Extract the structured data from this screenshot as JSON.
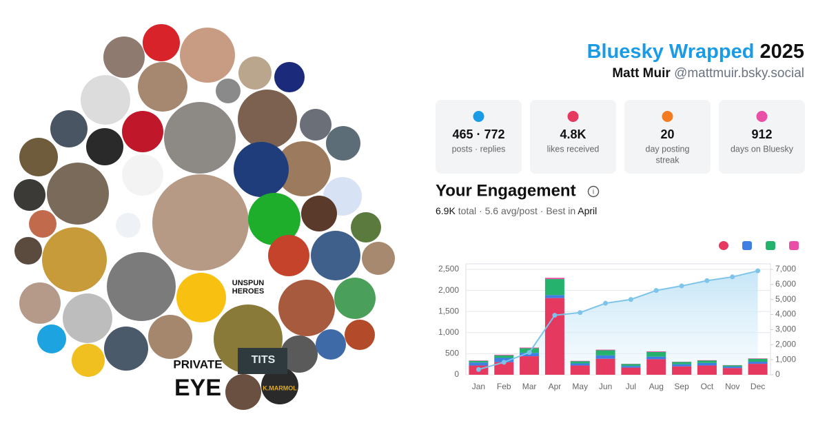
{
  "header": {
    "title": "Bluesky Wrapped",
    "year": "2025",
    "name": "Matt Muir",
    "handle": "@mattmuir.bsky.social"
  },
  "stats": [
    {
      "value": "465 · 772",
      "label": "posts · replies"
    },
    {
      "value": "4.8K",
      "label": "likes received"
    },
    {
      "value": "20",
      "label": "day posting",
      "label2": "streak"
    },
    {
      "value": "912",
      "label": "days on Bluesky"
    }
  ],
  "engagement": {
    "title": "Your Engagement",
    "total": "6.9K",
    "middle": "total · 5.6 avg/post · Best in",
    "best": "April"
  },
  "avatar_labels": [
    "UNSPUN",
    "HEROES",
    "PRIVATE",
    "EYE",
    "K.MARMOL",
    "TITS"
  ],
  "chart_data": {
    "type": "bar",
    "stacked": true,
    "grid": true,
    "categories": [
      "Jan",
      "Feb",
      "Mar",
      "Apr",
      "May",
      "Jun",
      "Jul",
      "Aug",
      "Sep",
      "Oct",
      "Nov",
      "Dec"
    ],
    "series": [
      {
        "color": "#e5395f",
        "values": [
          220,
          300,
          440,
          1820,
          220,
          380,
          170,
          370,
          200,
          220,
          160,
          260
        ]
      },
      {
        "color": "#3f7fe3",
        "values": [
          70,
          100,
          80,
          70,
          50,
          80,
          40,
          60,
          50,
          60,
          35,
          50
        ]
      },
      {
        "color": "#25b26c",
        "values": [
          40,
          60,
          110,
          380,
          50,
          120,
          45,
          110,
          55,
          55,
          30,
          70
        ]
      },
      {
        "color": "#e94fa6",
        "values": [
          10,
          15,
          15,
          30,
          10,
          15,
          5,
          15,
          5,
          10,
          5,
          10
        ]
      },
      {
        "type": "line",
        "axis": "y2",
        "color": "#7cc4ea",
        "values": [
          350,
          830,
          1480,
          3950,
          4130,
          4750,
          5000,
          5600,
          5900,
          6250,
          6500,
          6900
        ]
      }
    ],
    "ylim": [
      0,
      2500
    ],
    "yticks": [
      0,
      500,
      {
        "value": 1000,
        "label": "1,000"
      },
      {
        "value": 1500,
        "label": "1,500"
      },
      {
        "value": 2000,
        "label": "2,000"
      },
      {
        "value": 2500,
        "label": "2,500"
      }
    ],
    "y2lim": [
      0,
      7000
    ],
    "y2ticks": [
      0,
      {
        "value": 1000,
        "label": "1,000"
      },
      {
        "value": 2000,
        "label": "2,000"
      },
      {
        "value": 3000,
        "label": "3,000"
      },
      {
        "value": 4000,
        "label": "4,000"
      },
      {
        "value": 5000,
        "label": "5,000"
      },
      {
        "value": 6000,
        "label": "6,000"
      },
      {
        "value": 7000,
        "label": "7,000"
      }
    ]
  }
}
